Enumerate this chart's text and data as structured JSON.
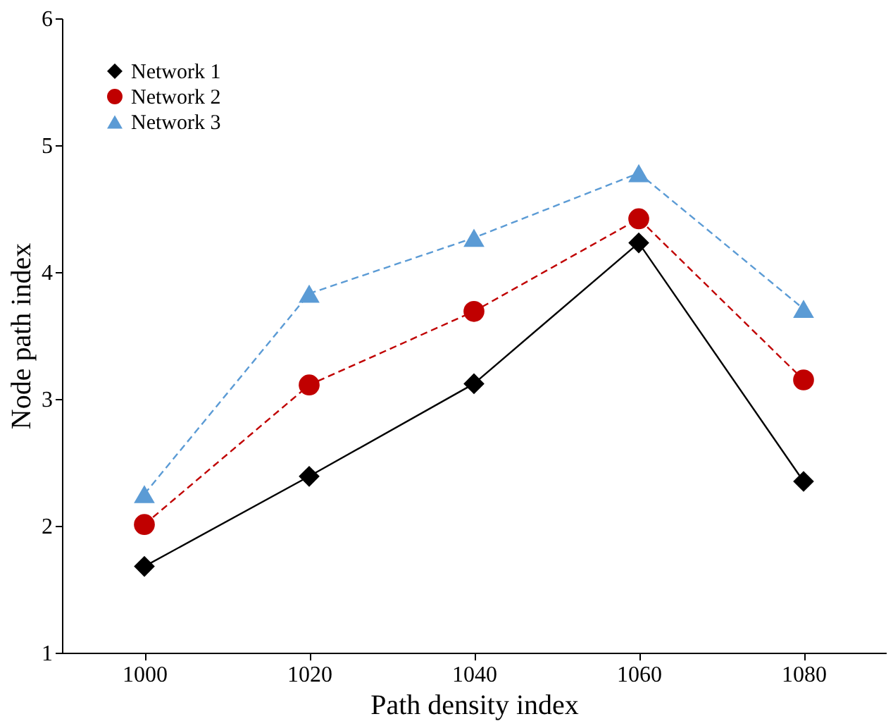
{
  "chart_data": {
    "type": "line",
    "xlabel": "Path density index",
    "ylabel": "Node path index",
    "x": [
      1000,
      1020,
      1040,
      1060,
      1080
    ],
    "series": [
      {
        "name": "Network 1",
        "color": "#000000",
        "marker": "diamond",
        "line_style": "solid",
        "values": [
          1.68,
          2.39,
          3.12,
          4.23,
          2.35
        ]
      },
      {
        "name": "Network 2",
        "color": "#c00000",
        "marker": "circle",
        "line_style": "dashed",
        "values": [
          2.01,
          3.11,
          3.69,
          4.42,
          3.15
        ]
      },
      {
        "name": "Network 3",
        "color": "#5b9bd5",
        "marker": "triangle",
        "line_style": "dashed",
        "values": [
          2.25,
          3.83,
          4.27,
          4.78,
          3.71
        ]
      }
    ],
    "xlim": [
      990,
      1090
    ],
    "xticks": [
      1000,
      1020,
      1040,
      1060,
      1080
    ],
    "ylim": [
      1,
      6
    ],
    "yticks": [
      1,
      2,
      3,
      4,
      5,
      6
    ],
    "grid": false,
    "legend": "top left"
  }
}
